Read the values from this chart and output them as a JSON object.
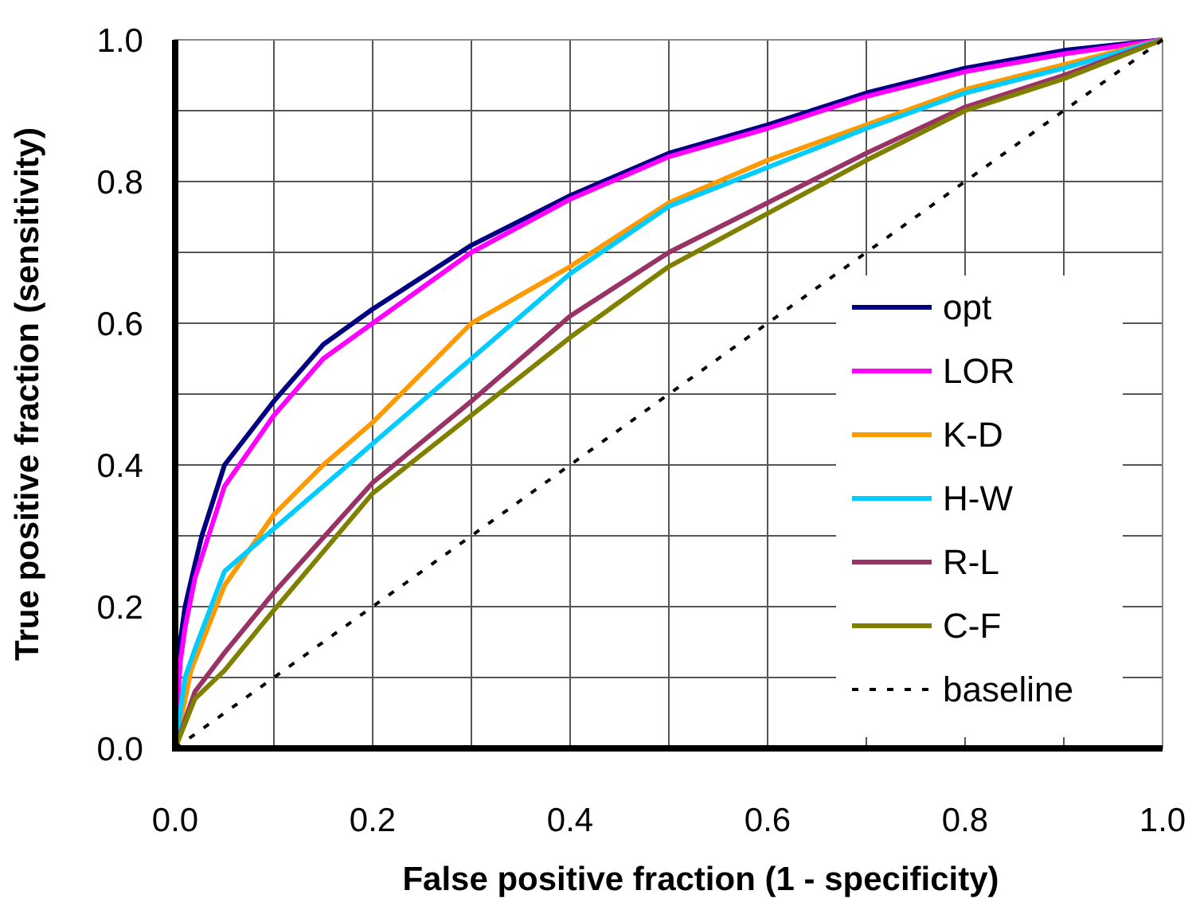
{
  "chart_data": {
    "type": "line",
    "xlabel": "False positive fraction (1 - specificity)",
    "ylabel": "True positive fraction (sensitivity)",
    "xlim": [
      0,
      1
    ],
    "ylim": [
      0,
      1
    ],
    "xticks": [
      {
        "value": 0,
        "label": "0.0"
      },
      {
        "value": 0.1,
        "label": null
      },
      {
        "value": 0.2,
        "label": "0.2"
      },
      {
        "value": 0.3,
        "label": null
      },
      {
        "value": 0.4,
        "label": "0.4"
      },
      {
        "value": 0.5,
        "label": null
      },
      {
        "value": 0.6,
        "label": "0.6"
      },
      {
        "value": 0.7,
        "label": null
      },
      {
        "value": 0.8,
        "label": "0.8"
      },
      {
        "value": 0.9,
        "label": null
      },
      {
        "value": 1,
        "label": "1.0"
      }
    ],
    "yticks": [
      {
        "value": 0,
        "label": "0.0"
      },
      {
        "value": 0.1,
        "label": null
      },
      {
        "value": 0.2,
        "label": "0.2"
      },
      {
        "value": 0.3,
        "label": null
      },
      {
        "value": 0.4,
        "label": "0.4"
      },
      {
        "value": 0.5,
        "label": null
      },
      {
        "value": 0.6,
        "label": "0.6"
      },
      {
        "value": 0.7,
        "label": null
      },
      {
        "value": 0.8,
        "label": "0.8"
      },
      {
        "value": 0.9,
        "label": null
      },
      {
        "value": 1,
        "label": "1.0"
      }
    ],
    "grid": true,
    "legend": "bottom right",
    "marker": "none",
    "series": [
      {
        "name": "opt",
        "color": "#000080",
        "line_style": "solid",
        "x": [
          0,
          0.005,
          0.01,
          0.02,
          0.027,
          0.05,
          0.1,
          0.15,
          0.2,
          0.3,
          0.4,
          0.5,
          0.6,
          0.7,
          0.8,
          0.9,
          1
        ],
        "values": [
          0,
          0.15,
          0.2,
          0.26,
          0.3,
          0.4,
          0.49,
          0.57,
          0.62,
          0.71,
          0.78,
          0.84,
          0.88,
          0.925,
          0.96,
          0.985,
          1
        ]
      },
      {
        "name": "LOR",
        "color": "#ff00ff",
        "line_style": "solid",
        "x": [
          0,
          0.005,
          0.01,
          0.02,
          0.05,
          0.1,
          0.15,
          0.2,
          0.3,
          0.4,
          0.5,
          0.6,
          0.7,
          0.8,
          0.9,
          1
        ],
        "values": [
          0,
          0.12,
          0.17,
          0.24,
          0.37,
          0.47,
          0.55,
          0.6,
          0.7,
          0.775,
          0.835,
          0.875,
          0.92,
          0.955,
          0.98,
          1
        ]
      },
      {
        "name": "K-D",
        "color": "#ff9900",
        "line_style": "solid",
        "x": [
          0,
          0.016,
          0.05,
          0.1,
          0.15,
          0.2,
          0.3,
          0.4,
          0.5,
          0.6,
          0.7,
          0.8,
          0.9,
          1
        ],
        "values": [
          0,
          0.11,
          0.23,
          0.33,
          0.4,
          0.46,
          0.6,
          0.68,
          0.77,
          0.83,
          0.88,
          0.93,
          0.965,
          1
        ]
      },
      {
        "name": "H-W",
        "color": "#00ccff",
        "line_style": "solid",
        "x": [
          0,
          0.01,
          0.02,
          0.05,
          0.1,
          0.15,
          0.2,
          0.3,
          0.4,
          0.5,
          0.6,
          0.7,
          0.8,
          0.9,
          1
        ],
        "values": [
          0,
          0.1,
          0.14,
          0.25,
          0.31,
          0.37,
          0.43,
          0.55,
          0.67,
          0.765,
          0.82,
          0.875,
          0.925,
          0.96,
          1
        ]
      },
      {
        "name": "R-L",
        "color": "#993366",
        "line_style": "solid",
        "x": [
          0,
          0.02,
          0.05,
          0.1,
          0.2,
          0.3,
          0.4,
          0.5,
          0.6,
          0.7,
          0.8,
          0.9,
          1
        ],
        "values": [
          0,
          0.08,
          0.135,
          0.22,
          0.375,
          0.49,
          0.61,
          0.7,
          0.77,
          0.84,
          0.905,
          0.95,
          1
        ]
      },
      {
        "name": "C-F",
        "color": "#808000",
        "line_style": "solid",
        "x": [
          0,
          0.02,
          0.05,
          0.1,
          0.2,
          0.3,
          0.4,
          0.5,
          0.6,
          0.7,
          0.8,
          0.9,
          1
        ],
        "values": [
          0,
          0.07,
          0.11,
          0.195,
          0.36,
          0.47,
          0.58,
          0.68,
          0.755,
          0.83,
          0.9,
          0.945,
          1
        ]
      },
      {
        "name": "baseline",
        "color": "#000000",
        "line_style": "dashed",
        "x": [
          0,
          1
        ],
        "values": [
          0,
          1
        ]
      }
    ]
  }
}
